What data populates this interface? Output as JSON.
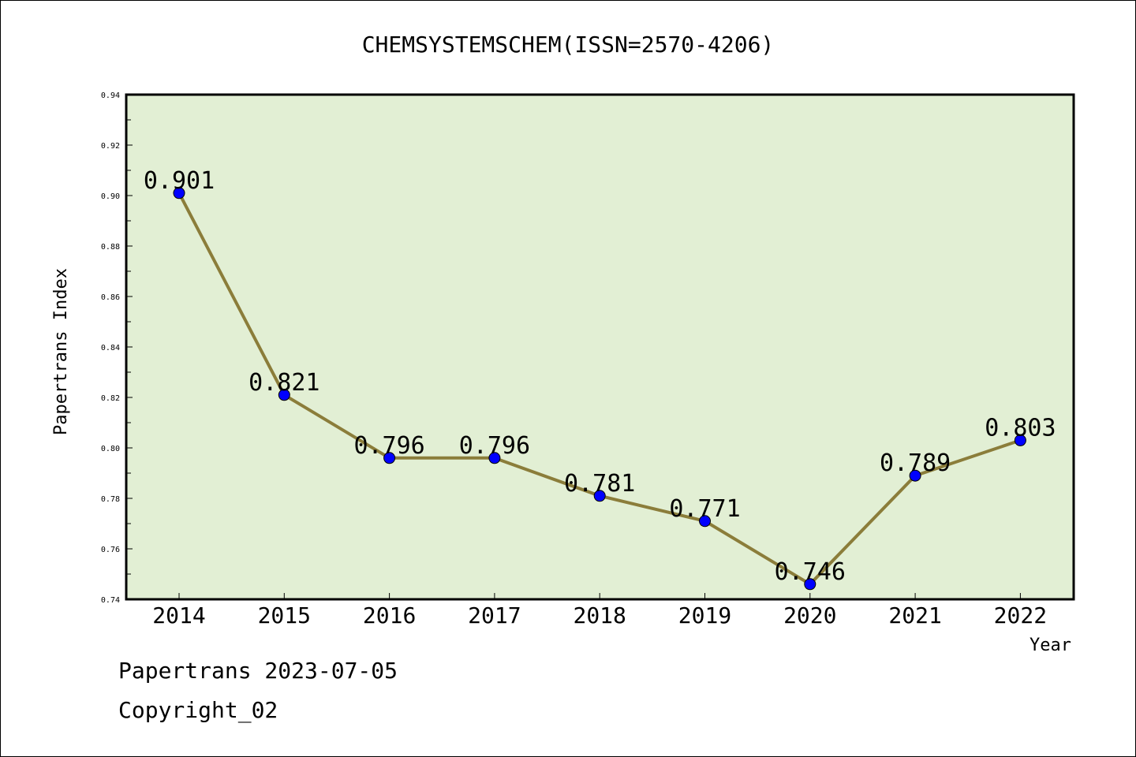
{
  "chart_data": {
    "type": "line",
    "title": "CHEMSYSTEMSCHEM(ISSN=2570-4206)",
    "xlabel": "Year",
    "ylabel": "Papertrans Index",
    "categories": [
      "2014",
      "2015",
      "2016",
      "2017",
      "2018",
      "2019",
      "2020",
      "2021",
      "2022"
    ],
    "values": [
      0.901,
      0.821,
      0.796,
      0.796,
      0.781,
      0.771,
      0.746,
      0.789,
      0.803
    ],
    "data_labels": [
      "0.901",
      "0.821",
      "0.796",
      "0.796",
      "0.781",
      "0.771",
      "0.746",
      "0.789",
      "0.803"
    ],
    "ylim": [
      0.74,
      0.94
    ],
    "yticks": [
      "0.74",
      "0.76",
      "0.78",
      "0.80",
      "0.82",
      "0.84",
      "0.86",
      "0.88",
      "0.90",
      "0.92",
      "0.94"
    ],
    "grid": false,
    "line_color": "#8b7d3a",
    "marker_color": "#0000ff",
    "plot_bg": "#e2efd4"
  },
  "footer": {
    "line1": "Papertrans 2023-07-05",
    "line2": "Copyright_02"
  }
}
